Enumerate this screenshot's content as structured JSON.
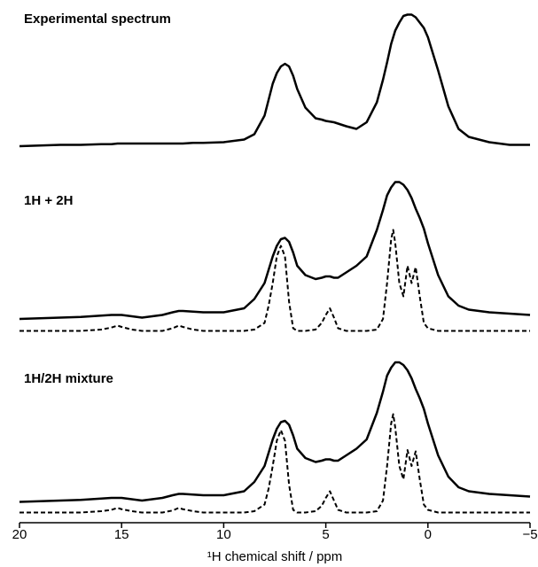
{
  "chart_data": [
    {
      "type": "line",
      "title": "Experimental spectrum",
      "xlim": [
        20,
        -5
      ],
      "ylim": [
        0,
        100
      ],
      "x": [
        20,
        19,
        18,
        17,
        16,
        15.5,
        15.2,
        15,
        14.5,
        14,
        13,
        12.5,
        12.2,
        12,
        11.5,
        11,
        10,
        9,
        8.5,
        8,
        7.8,
        7.6,
        7.4,
        7.2,
        7,
        6.8,
        6.6,
        6.4,
        6,
        5.5,
        5.2,
        5,
        4.8,
        4.6,
        4.4,
        4,
        3.5,
        3,
        2.5,
        2.2,
        2,
        1.8,
        1.7,
        1.6,
        1.4,
        1.2,
        1,
        0.8,
        0.6,
        0.4,
        0.2,
        0,
        -0.5,
        -1,
        -1.5,
        -2,
        -3,
        -4,
        -5
      ],
      "series": [
        {
          "color": "#000000",
          "dash": false,
          "values": [
            0,
            0.5,
            1,
            1,
            1.5,
            1.5,
            2,
            2,
            2,
            2,
            2,
            2,
            2,
            2,
            2.5,
            2.5,
            3,
            5,
            9,
            23,
            35,
            47,
            55,
            60,
            62,
            60,
            53,
            43,
            29,
            21,
            20,
            19,
            18.5,
            18,
            17,
            15,
            13,
            18,
            33,
            50,
            63,
            77,
            82,
            87,
            93,
            98,
            99,
            99,
            97,
            93,
            89,
            82,
            57,
            30,
            13,
            7,
            3,
            1,
            1
          ]
        }
      ]
    },
    {
      "type": "line",
      "title": "1H + 2H",
      "xlim": [
        20,
        -5
      ],
      "ylim": [
        0,
        120
      ],
      "x": [
        20,
        19,
        18,
        17,
        16,
        15.5,
        15.2,
        15,
        14.5,
        14,
        13,
        12.5,
        12.2,
        12,
        11.5,
        11,
        10,
        9,
        8.5,
        8,
        7.8,
        7.6,
        7.4,
        7.2,
        7,
        6.8,
        6.6,
        6.4,
        6,
        5.5,
        5.2,
        5,
        4.8,
        4.6,
        4.4,
        4,
        3.5,
        3,
        2.5,
        2.2,
        2,
        1.8,
        1.7,
        1.6,
        1.4,
        1.2,
        1,
        0.8,
        0.6,
        0.4,
        0.2,
        0,
        -0.5,
        -1,
        -1.5,
        -2,
        -3,
        -4,
        -5
      ],
      "series": [
        {
          "color": "#000000",
          "dash": false,
          "values": [
            10,
            10.5,
            11,
            11.5,
            12.5,
            13,
            13,
            13,
            12,
            11,
            13,
            15,
            16,
            16,
            15.5,
            15,
            15,
            18,
            25,
            37,
            47,
            57,
            65,
            70,
            71,
            68,
            60,
            50,
            43,
            40,
            41,
            42,
            42,
            41,
            41,
            45,
            50,
            57,
            77,
            92,
            103,
            109,
            111,
            113,
            113,
            111,
            107,
            101,
            93,
            86,
            78,
            67,
            43,
            27,
            20,
            17,
            15,
            14,
            13
          ]
        },
        {
          "color": "#000000",
          "dash": true,
          "values": [
            1,
            1,
            1,
            1,
            2,
            3.5,
            5,
            4,
            2,
            1,
            1,
            3,
            5,
            4,
            2,
            1,
            1,
            1,
            2,
            7,
            20,
            37,
            57,
            65,
            57,
            23,
            3,
            1,
            1,
            2,
            7,
            13,
            18,
            11,
            3,
            1,
            1,
            1,
            2,
            10,
            37,
            70,
            77,
            67,
            37,
            27,
            50,
            37,
            49,
            27,
            7,
            3,
            1,
            1,
            1,
            1,
            1,
            1,
            1
          ]
        }
      ]
    },
    {
      "type": "line",
      "title": "1H/2H mixture",
      "xlim": [
        20,
        -5
      ],
      "ylim": [
        0,
        120
      ],
      "xticks": [
        20,
        15,
        10,
        5,
        0,
        {
          "value": -5,
          "label": "−5"
        }
      ],
      "xlabel": "¹H chemical shift / ppm",
      "x": [
        20,
        19,
        18,
        17,
        16,
        15.5,
        15.2,
        15,
        14.5,
        14,
        13,
        12.5,
        12.2,
        12,
        11.5,
        11,
        10,
        9,
        8.5,
        8,
        7.8,
        7.6,
        7.4,
        7.2,
        7,
        6.8,
        6.6,
        6.4,
        6,
        5.5,
        5.2,
        5,
        4.8,
        4.6,
        4.4,
        4,
        3.5,
        3,
        2.5,
        2.2,
        2,
        1.8,
        1.7,
        1.6,
        1.4,
        1.2,
        1,
        0.8,
        0.6,
        0.4,
        0.2,
        0,
        -0.5,
        -1,
        -1.5,
        -2,
        -3,
        -4,
        -5
      ],
      "series": [
        {
          "color": "#000000",
          "dash": false,
          "values": [
            9,
            9.5,
            10,
            10.5,
            11.5,
            12,
            12,
            12,
            11,
            10,
            12,
            14,
            15,
            15,
            14.5,
            14,
            14,
            17,
            24,
            36,
            46,
            56,
            64,
            69,
            70,
            67,
            59,
            49,
            42,
            39,
            40,
            41,
            41,
            40,
            40,
            44,
            49,
            56,
            76,
            92,
            104,
            110,
            112,
            114,
            114,
            112,
            108,
            102,
            94,
            87,
            79,
            68,
            44,
            28,
            20,
            17,
            15,
            14,
            13
          ]
        },
        {
          "color": "#000000",
          "dash": true,
          "values": [
            1,
            1,
            1,
            1,
            2,
            3,
            4.5,
            3.5,
            2,
            1,
            1,
            2.5,
            4.5,
            3.5,
            2,
            1,
            1,
            1,
            2,
            7,
            19,
            36,
            55,
            63,
            55,
            22,
            3,
            1,
            1,
            2,
            6,
            12,
            17,
            10,
            3,
            1,
            1,
            1,
            2,
            10,
            36,
            68,
            75,
            65,
            36,
            26,
            48,
            36,
            47,
            26,
            7,
            3,
            1,
            1,
            1,
            1,
            1,
            1,
            1
          ]
        }
      ]
    }
  ]
}
